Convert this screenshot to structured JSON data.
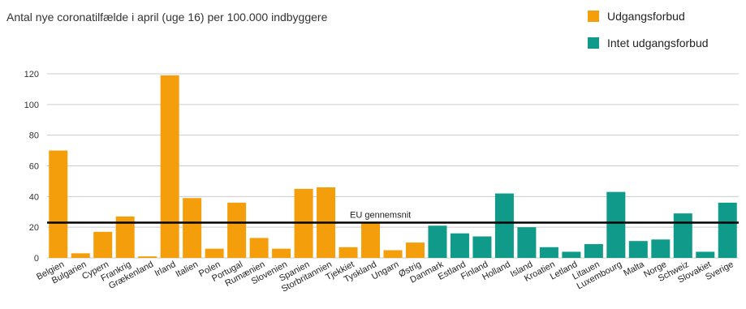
{
  "chart_data": {
    "type": "bar",
    "title": "Antal nye coronatilfælde i april (uge 16) per 100.000 indbyggere",
    "xlabel": "",
    "ylabel": "",
    "ylim": [
      0,
      120
    ],
    "yticks": [
      0,
      20,
      40,
      60,
      80,
      100,
      120
    ],
    "grid": true,
    "legend_position": "top-right",
    "series": [
      {
        "name": "Udgangsforbud",
        "color": "#f59e0b"
      },
      {
        "name": "Intet udgangsforbud",
        "color": "#0f9a8a"
      }
    ],
    "categories": [
      "Belgien",
      "Bulgarien",
      "Cypern",
      "Frankrig",
      "Grækenland",
      "Irland",
      "Italien",
      "Polen",
      "Portugal",
      "Rumænien",
      "Slovenien",
      "Spanien",
      "Storbritannien",
      "Tjekkiet",
      "Tyskland",
      "Ungarn",
      "Østrig",
      "Danmark",
      "Estland",
      "Finland",
      "Holland",
      "Island",
      "Kroatien",
      "Letland",
      "Litauen",
      "Luxembourg",
      "Malta",
      "Norge",
      "Schweiz",
      "Slovakiet",
      "Sverige"
    ],
    "values": [
      70,
      3,
      17,
      27,
      1,
      119,
      39,
      6,
      36,
      13,
      6,
      45,
      46,
      7,
      23,
      5,
      10,
      21,
      16,
      14,
      42,
      20,
      7,
      4,
      9,
      43,
      11,
      12,
      29,
      4,
      36
    ],
    "group": [
      0,
      0,
      0,
      0,
      0,
      0,
      0,
      0,
      0,
      0,
      0,
      0,
      0,
      0,
      0,
      0,
      0,
      1,
      1,
      1,
      1,
      1,
      1,
      1,
      1,
      1,
      1,
      1,
      1,
      1,
      1
    ],
    "reference_line": {
      "label": "EU gennemsnit",
      "value": 23
    }
  }
}
